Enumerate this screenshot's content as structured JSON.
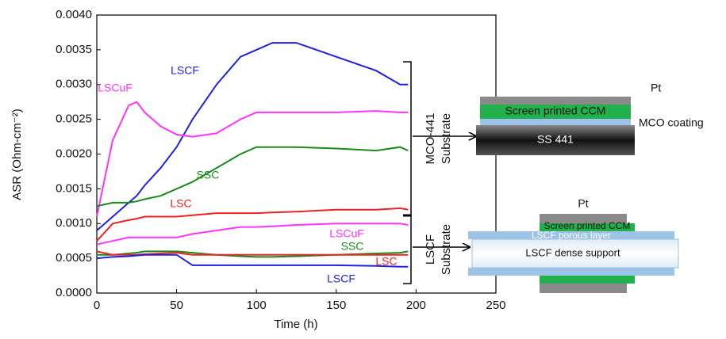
{
  "chart_data": {
    "type": "line",
    "xlabel": "Time (h)",
    "ylabel": "ASR (Ohm-cm⁻²)",
    "x": [
      0,
      10,
      20,
      25,
      30,
      40,
      50,
      60,
      75,
      90,
      100,
      110,
      125,
      150,
      175,
      190,
      195
    ],
    "series": [
      {
        "name": "LSCF",
        "color": "#2020e0",
        "values": [
          0.0009,
          0.0011,
          0.0013,
          0.0014,
          0.00155,
          0.0018,
          0.0021,
          0.0025,
          0.003,
          0.0034,
          0.0035,
          0.0036,
          0.0036,
          0.0034,
          0.0032,
          0.003,
          0.003
        ]
      },
      {
        "name": "LSCuF",
        "color": "#ff33ff",
        "values": [
          0.0011,
          0.0022,
          0.0027,
          0.00275,
          0.0026,
          0.0024,
          0.00228,
          0.00225,
          0.0023,
          0.0025,
          0.0026,
          0.0026,
          0.0026,
          0.0026,
          0.00262,
          0.0026,
          0.0026
        ]
      },
      {
        "name": "SSC",
        "color": "#1a8a1a",
        "values": [
          0.00125,
          0.0013,
          0.0013,
          0.00132,
          0.00135,
          0.0014,
          0.0015,
          0.0016,
          0.0018,
          0.002,
          0.0021,
          0.0021,
          0.0021,
          0.00208,
          0.00205,
          0.0021,
          0.00205
        ]
      },
      {
        "name": "LSC",
        "color": "#ee2222",
        "values": [
          0.00075,
          0.001,
          0.00105,
          0.00107,
          0.0011,
          0.0011,
          0.0011,
          0.00112,
          0.00115,
          0.00115,
          0.00115,
          0.00116,
          0.00117,
          0.0012,
          0.0012,
          0.00122,
          0.0012
        ]
      },
      {
        "name": "LSCuF",
        "color": "#ff33ff",
        "values": [
          0.0007,
          0.00075,
          0.0008,
          0.0008,
          0.0008,
          0.0008,
          0.0008,
          0.00085,
          0.0009,
          0.00095,
          0.00095,
          0.00096,
          0.00098,
          0.001,
          0.001,
          0.001,
          0.00098
        ]
      },
      {
        "name": "SSC",
        "color": "#1a8a1a",
        "values": [
          0.00055,
          0.00055,
          0.00057,
          0.00058,
          0.0006,
          0.0006,
          0.0006,
          0.00058,
          0.00055,
          0.00053,
          0.00052,
          0.00052,
          0.00053,
          0.00055,
          0.00057,
          0.00058,
          0.0006
        ]
      },
      {
        "name": "LSC",
        "color": "#ee2222",
        "values": [
          0.0006,
          0.00055,
          0.00055,
          0.00055,
          0.00056,
          0.00057,
          0.00058,
          0.00055,
          0.00055,
          0.00055,
          0.00055,
          0.00055,
          0.00055,
          0.00055,
          0.00055,
          0.00055,
          0.00055
        ]
      },
      {
        "name": "LSCF",
        "color": "#2020e0",
        "values": [
          0.0005,
          0.00052,
          0.00053,
          0.00054,
          0.00055,
          0.00055,
          0.00055,
          0.0004,
          0.0004,
          0.0004,
          0.0004,
          0.0004,
          0.0004,
          0.0004,
          0.00039,
          0.00038,
          0.00038
        ]
      }
    ],
    "xlim": [
      0,
      250
    ],
    "xticks": [
      0,
      50,
      100,
      150,
      200,
      250
    ],
    "ylim": [
      0,
      0.004
    ],
    "yticks": [
      {
        "value": 0,
        "label": "0.0000"
      },
      {
        "value": 0.0005,
        "label": "0.0005"
      },
      {
        "value": 0.001,
        "label": "0.0010"
      },
      {
        "value": 0.0015,
        "label": "0.0015"
      },
      {
        "value": 0.002,
        "label": "0.0020"
      },
      {
        "value": 0.0025,
        "label": "0.0025"
      },
      {
        "value": 0.003,
        "label": "0.0030"
      },
      {
        "value": 0.0035,
        "label": "0.0035"
      },
      {
        "value": 0.004,
        "label": "0.0040"
      }
    ],
    "grid": false,
    "group_labels": [
      [
        "MCO-441",
        "Substrate"
      ],
      [
        "LSCF",
        "Substrate"
      ]
    ]
  },
  "diagrams": {
    "top": {
      "pt": "Pt",
      "ccm": "Screen printed CCM",
      "coating": "MCO coating",
      "substrate": "SS 441"
    },
    "bottom": {
      "pt": "Pt",
      "ccm": "Screen printed CCM",
      "porous": "LSCF porous layer",
      "dense": "LSCF dense support"
    }
  }
}
